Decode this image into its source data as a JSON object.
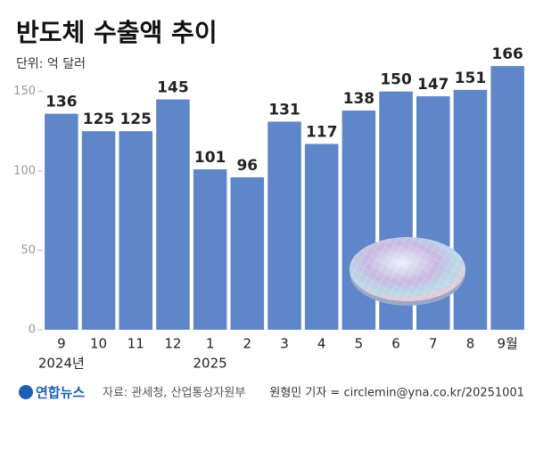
{
  "chart_data": {
    "type": "bar",
    "title": "반도체 수출액 추이",
    "subtitle": "단위: 억 달러",
    "categories": [
      "9",
      "10",
      "11",
      "12",
      "1",
      "2",
      "3",
      "4",
      "5",
      "6",
      "7",
      "8",
      "9월"
    ],
    "year_labels": [
      "2024년",
      null,
      null,
      null,
      "2025",
      null,
      null,
      null,
      null,
      null,
      null,
      null,
      null
    ],
    "values": [
      136,
      125,
      125,
      145,
      101,
      96,
      131,
      117,
      138,
      150,
      147,
      151,
      166
    ],
    "color": "#5f86c8",
    "ylim": [
      0,
      170
    ],
    "yticks": [
      0,
      50,
      100,
      150
    ],
    "grid": false
  },
  "footer": {
    "logo": "연합뉴스",
    "source": "자료: 관세청, 산업통상자원부",
    "credit": "원형민 기자 = circlemin@yna.co.kr/20251001"
  }
}
